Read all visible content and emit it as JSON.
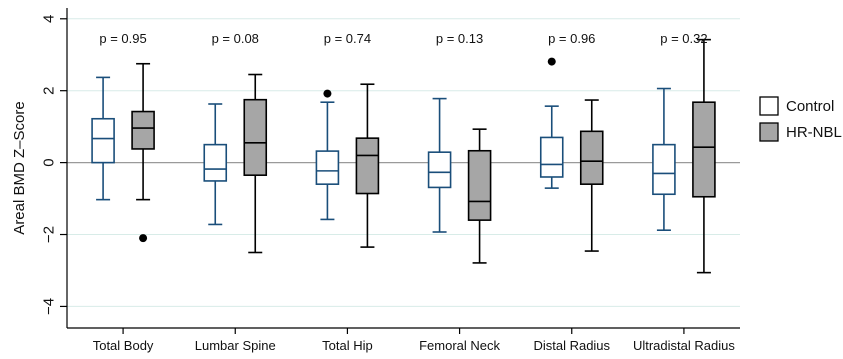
{
  "colors": {
    "control_stroke": "#1a4e7a",
    "control_fill": "#ffffff",
    "hrnbl_stroke": "#000000",
    "hrnbl_fill": "#a6a6a6",
    "grid": "#d8ece8",
    "zero_line": "#9a9a9a",
    "outlier": "#000000"
  },
  "chart_data": {
    "type": "box",
    "ylabel": "Areal BMD Z–Score",
    "ylim": [
      -4.6,
      4.3
    ],
    "yticks": [
      -4,
      -2,
      0,
      2,
      4
    ],
    "grid": true,
    "legend_position": "right",
    "categories": [
      "Total Body",
      "Lumbar Spine",
      "Total Hip",
      "Femoral Neck",
      "Distal Radius",
      "Ultradistal Radius"
    ],
    "p_values": [
      "p = 0.95",
      "p = 0.08",
      "p = 0.74",
      "p = 0.13",
      "p = 0.96",
      "p = 0.32"
    ],
    "series": [
      {
        "name": "Control",
        "boxes": [
          {
            "min": -1.03,
            "q1": 0.0,
            "median": 0.67,
            "q3": 1.22,
            "max": 2.37,
            "outliers": []
          },
          {
            "min": -1.72,
            "q1": -0.51,
            "median": -0.18,
            "q3": 0.5,
            "max": 1.63,
            "outliers": []
          },
          {
            "min": -1.58,
            "q1": -0.6,
            "median": -0.23,
            "q3": 0.32,
            "max": 1.68,
            "outliers": [
              1.92
            ]
          },
          {
            "min": -1.93,
            "q1": -0.69,
            "median": -0.27,
            "q3": 0.29,
            "max": 1.78,
            "outliers": []
          },
          {
            "min": -0.71,
            "q1": -0.4,
            "median": -0.05,
            "q3": 0.7,
            "max": 1.57,
            "outliers": [
              2.81
            ]
          },
          {
            "min": -1.88,
            "q1": -0.88,
            "median": -0.3,
            "q3": 0.5,
            "max": 2.06,
            "outliers": []
          }
        ]
      },
      {
        "name": "HR-NBL",
        "boxes": [
          {
            "min": -1.03,
            "q1": 0.38,
            "median": 0.96,
            "q3": 1.42,
            "max": 2.75,
            "outliers": [
              -2.1
            ]
          },
          {
            "min": -2.5,
            "q1": -0.35,
            "median": 0.55,
            "q3": 1.75,
            "max": 2.45,
            "outliers": []
          },
          {
            "min": -2.35,
            "q1": -0.86,
            "median": 0.2,
            "q3": 0.68,
            "max": 2.18,
            "outliers": []
          },
          {
            "min": -2.79,
            "q1": -1.6,
            "median": -1.08,
            "q3": 0.33,
            "max": 0.93,
            "outliers": []
          },
          {
            "min": -2.46,
            "q1": -0.6,
            "median": 0.04,
            "q3": 0.87,
            "max": 1.74,
            "outliers": []
          },
          {
            "min": -3.06,
            "q1": -0.95,
            "median": 0.43,
            "q3": 1.68,
            "max": 3.42,
            "outliers": []
          }
        ]
      }
    ]
  }
}
